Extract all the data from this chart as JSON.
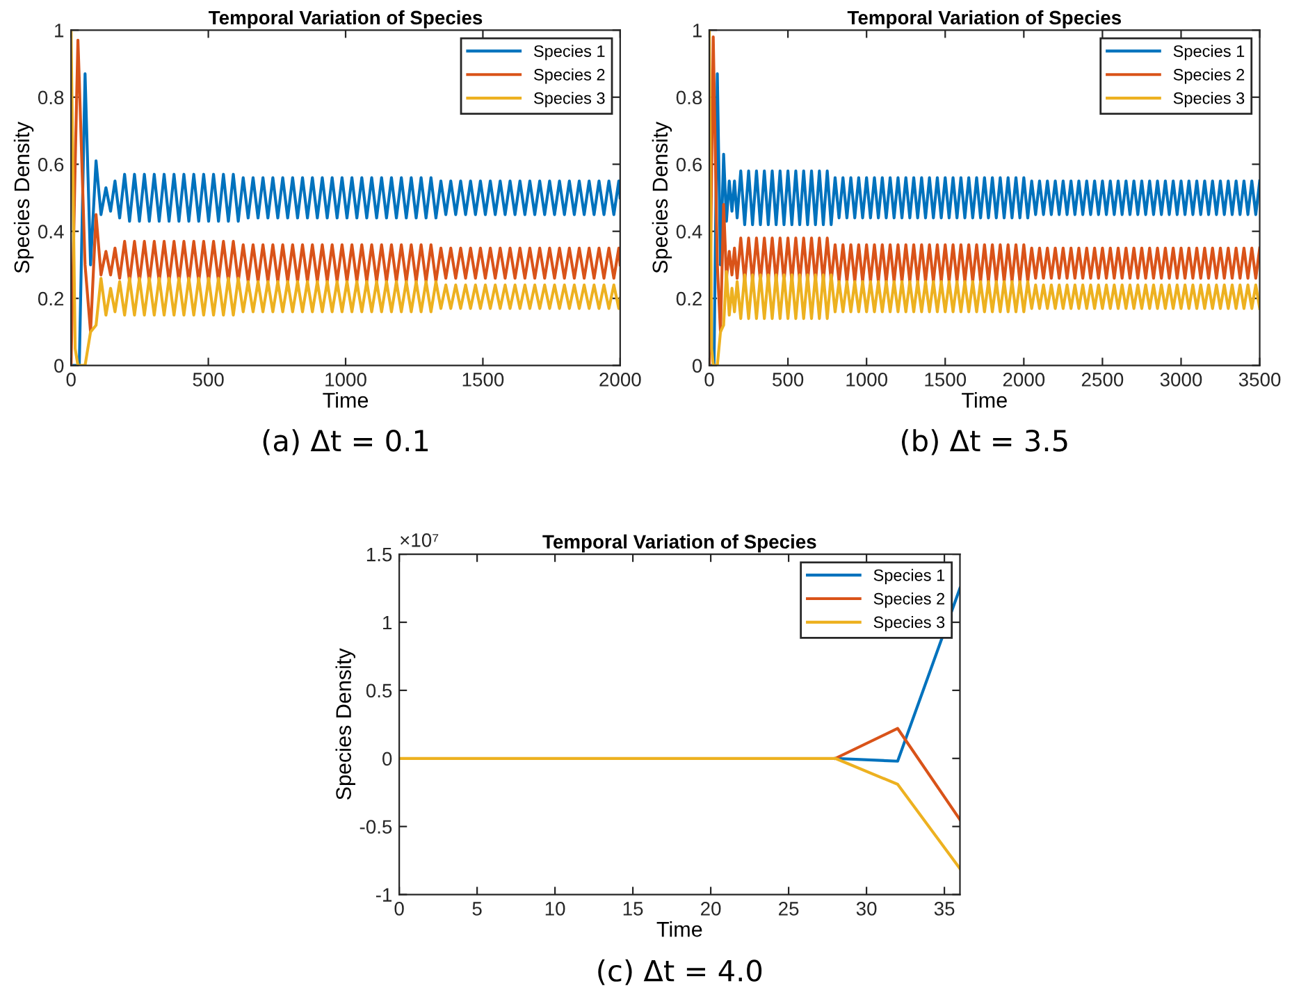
{
  "chart_data": [
    {
      "type": "line",
      "title": "Temporal Variation of Species",
      "xlabel": "Time",
      "ylabel": "Species Density",
      "annotations": [
        "(a) Δt = 0.1"
      ],
      "legend": "top right",
      "grid": false,
      "xlim": [
        0,
        2000
      ],
      "xticks": [
        0,
        500,
        1000,
        1500,
        2000
      ],
      "ylim": [
        0,
        1
      ],
      "yticks": [
        0,
        0.2,
        0.4,
        0.6,
        0.8,
        1
      ],
      "x": [
        0,
        15,
        25,
        30,
        51,
        71,
        91,
        109,
        127,
        144,
        160,
        177,
        195,
        213,
        231,
        249,
        267,
        285,
        303,
        321,
        339,
        357,
        375,
        393,
        411,
        429,
        447,
        465,
        483,
        501,
        519,
        537,
        555,
        573,
        591,
        609,
        627,
        645,
        663,
        681,
        699,
        717,
        735,
        753,
        771,
        789,
        807,
        825,
        843,
        861,
        879,
        897,
        915,
        933,
        951,
        969,
        987,
        1005,
        1023,
        1041,
        1059,
        1077,
        1095,
        1113,
        1131,
        1149,
        1167,
        1185,
        1203,
        1221,
        1239,
        1257,
        1275,
        1293,
        1311,
        1329,
        1347,
        1365,
        1383,
        1401,
        1419,
        1437,
        1455,
        1473,
        1491,
        1509,
        1527,
        1545,
        1563,
        1581,
        1599,
        1617,
        1635,
        1653,
        1671,
        1689,
        1707,
        1725,
        1743,
        1761,
        1779,
        1797,
        1815,
        1833,
        1851,
        1869,
        1887,
        1905,
        1923,
        1941,
        1959,
        1977,
        1995,
        2000
      ],
      "series": [
        {
          "name": "Species 1",
          "color": "#0072bd",
          "values": [
            0,
            0,
            0,
            0,
            0.87,
            0.3,
            0.61,
            0.45,
            0.53,
            0.46,
            0.55,
            0.44,
            0.57,
            0.43,
            0.57,
            0.43,
            0.57,
            0.43,
            0.57,
            0.43,
            0.57,
            0.43,
            0.57,
            0.43,
            0.57,
            0.43,
            0.57,
            0.43,
            0.57,
            0.43,
            0.57,
            0.43,
            0.57,
            0.43,
            0.57,
            0.43,
            0.56,
            0.44,
            0.56,
            0.44,
            0.56,
            0.44,
            0.56,
            0.44,
            0.56,
            0.44,
            0.56,
            0.44,
            0.56,
            0.44,
            0.56,
            0.44,
            0.56,
            0.44,
            0.56,
            0.44,
            0.56,
            0.44,
            0.56,
            0.44,
            0.56,
            0.44,
            0.56,
            0.44,
            0.56,
            0.44,
            0.56,
            0.44,
            0.56,
            0.44,
            0.56,
            0.44,
            0.56,
            0.44,
            0.56,
            0.44,
            0.55,
            0.45,
            0.55,
            0.45,
            0.55,
            0.45,
            0.55,
            0.45,
            0.55,
            0.45,
            0.55,
            0.45,
            0.55,
            0.45,
            0.55,
            0.45,
            0.55,
            0.45,
            0.55,
            0.45,
            0.55,
            0.45,
            0.55,
            0.45,
            0.55,
            0.45,
            0.55,
            0.45,
            0.55,
            0.45,
            0.55,
            0.45,
            0.55,
            0.45,
            0.55,
            0.45,
            0.55,
            0.5
          ]
        },
        {
          "name": "Species 2",
          "color": "#d95319",
          "values": [
            0,
            0.6,
            0.97,
            0.85,
            0.3,
            0.1,
            0.45,
            0.27,
            0.34,
            0.27,
            0.35,
            0.26,
            0.37,
            0.25,
            0.37,
            0.25,
            0.37,
            0.25,
            0.37,
            0.25,
            0.37,
            0.25,
            0.37,
            0.25,
            0.37,
            0.25,
            0.37,
            0.25,
            0.37,
            0.25,
            0.37,
            0.25,
            0.37,
            0.25,
            0.37,
            0.25,
            0.36,
            0.25,
            0.36,
            0.25,
            0.36,
            0.25,
            0.36,
            0.25,
            0.36,
            0.25,
            0.36,
            0.25,
            0.36,
            0.25,
            0.36,
            0.25,
            0.36,
            0.25,
            0.36,
            0.25,
            0.36,
            0.25,
            0.36,
            0.25,
            0.36,
            0.25,
            0.36,
            0.25,
            0.36,
            0.25,
            0.36,
            0.25,
            0.36,
            0.25,
            0.36,
            0.25,
            0.36,
            0.25,
            0.36,
            0.25,
            0.35,
            0.26,
            0.35,
            0.26,
            0.35,
            0.26,
            0.35,
            0.26,
            0.35,
            0.26,
            0.35,
            0.26,
            0.35,
            0.26,
            0.35,
            0.26,
            0.35,
            0.26,
            0.35,
            0.26,
            0.35,
            0.26,
            0.35,
            0.26,
            0.35,
            0.26,
            0.35,
            0.26,
            0.35,
            0.26,
            0.35,
            0.26,
            0.35,
            0.26,
            0.35,
            0.26,
            0.35,
            0.3
          ]
        },
        {
          "name": "Species 3",
          "color": "#edb120",
          "values": [
            1,
            0.05,
            0,
            0,
            0,
            0.1,
            0.12,
            0.26,
            0.15,
            0.23,
            0.16,
            0.25,
            0.15,
            0.26,
            0.15,
            0.26,
            0.15,
            0.26,
            0.15,
            0.26,
            0.15,
            0.26,
            0.15,
            0.26,
            0.15,
            0.26,
            0.15,
            0.26,
            0.15,
            0.26,
            0.15,
            0.26,
            0.15,
            0.26,
            0.15,
            0.26,
            0.16,
            0.25,
            0.16,
            0.25,
            0.16,
            0.25,
            0.16,
            0.25,
            0.16,
            0.25,
            0.16,
            0.25,
            0.16,
            0.25,
            0.16,
            0.25,
            0.16,
            0.25,
            0.16,
            0.25,
            0.16,
            0.25,
            0.16,
            0.25,
            0.16,
            0.25,
            0.16,
            0.25,
            0.16,
            0.25,
            0.16,
            0.25,
            0.16,
            0.25,
            0.16,
            0.25,
            0.16,
            0.25,
            0.16,
            0.25,
            0.17,
            0.24,
            0.17,
            0.24,
            0.17,
            0.24,
            0.17,
            0.24,
            0.17,
            0.24,
            0.17,
            0.24,
            0.17,
            0.24,
            0.17,
            0.24,
            0.17,
            0.24,
            0.17,
            0.24,
            0.17,
            0.24,
            0.17,
            0.24,
            0.17,
            0.24,
            0.17,
            0.24,
            0.17,
            0.24,
            0.17,
            0.24,
            0.17,
            0.24,
            0.17,
            0.24,
            0.17,
            0.2
          ]
        }
      ]
    },
    {
      "type": "line",
      "title": "Temporal Variation of Species",
      "xlabel": "Time",
      "ylabel": "Species Density",
      "annotations": [
        "(b) Δt = 3.5"
      ],
      "legend": "top right",
      "grid": false,
      "xlim": [
        0,
        3500
      ],
      "xticks": [
        0,
        500,
        1000,
        1500,
        2000,
        2500,
        3000,
        3500
      ],
      "ylim": [
        0,
        1
      ],
      "yticks": [
        0,
        0.2,
        0.4,
        0.6,
        0.8,
        1
      ],
      "x": [
        0,
        15,
        25,
        30,
        51,
        71,
        91,
        109,
        127,
        144,
        160,
        177,
        200,
        225,
        250,
        275,
        300,
        325,
        350,
        375,
        400,
        425,
        450,
        475,
        500,
        525,
        550,
        575,
        600,
        625,
        650,
        675,
        700,
        725,
        750,
        775,
        800,
        825,
        850,
        875,
        900,
        925,
        950,
        975,
        1000,
        1025,
        1050,
        1075,
        1100,
        1125,
        1150,
        1175,
        1200,
        1225,
        1250,
        1275,
        1300,
        1325,
        1350,
        1375,
        1400,
        1425,
        1450,
        1475,
        1500,
        1525,
        1550,
        1575,
        1600,
        1625,
        1650,
        1675,
        1700,
        1725,
        1750,
        1775,
        1800,
        1825,
        1850,
        1875,
        1900,
        1925,
        1950,
        1975,
        2000,
        2025,
        2050,
        2075,
        2100,
        2125,
        2150,
        2175,
        2200,
        2225,
        2250,
        2275,
        2300,
        2325,
        2350,
        2375,
        2400,
        2425,
        2450,
        2475,
        2500,
        2525,
        2550,
        2575,
        2600,
        2625,
        2650,
        2675,
        2700,
        2725,
        2750,
        2775,
        2800,
        2825,
        2850,
        2875,
        2900,
        2925,
        2950,
        2975,
        3000,
        3025,
        3050,
        3075,
        3100,
        3125,
        3150,
        3175,
        3200,
        3225,
        3250,
        3275,
        3300,
        3325,
        3350,
        3375,
        3400,
        3425,
        3450,
        3475,
        3500
      ],
      "series": [
        {
          "name": "Species 1",
          "color": "#0072bd",
          "values": [
            0,
            0,
            0,
            0,
            0.87,
            0.3,
            0.63,
            0.43,
            0.55,
            0.46,
            0.55,
            0.44,
            0.58,
            0.42,
            0.58,
            0.42,
            0.58,
            0.42,
            0.58,
            0.42,
            0.58,
            0.42,
            0.58,
            0.42,
            0.58,
            0.42,
            0.58,
            0.42,
            0.58,
            0.42,
            0.58,
            0.42,
            0.58,
            0.42,
            0.58,
            0.42,
            0.56,
            0.44,
            0.56,
            0.44,
            0.56,
            0.44,
            0.56,
            0.44,
            0.56,
            0.44,
            0.56,
            0.44,
            0.56,
            0.44,
            0.56,
            0.44,
            0.56,
            0.44,
            0.56,
            0.44,
            0.56,
            0.44,
            0.56,
            0.44,
            0.56,
            0.44,
            0.56,
            0.44,
            0.56,
            0.44,
            0.56,
            0.44,
            0.56,
            0.44,
            0.56,
            0.44,
            0.56,
            0.44,
            0.56,
            0.44,
            0.56,
            0.44,
            0.56,
            0.44,
            0.56,
            0.44,
            0.56,
            0.44,
            0.56,
            0.44,
            0.55,
            0.45,
            0.55,
            0.45,
            0.55,
            0.45,
            0.55,
            0.45,
            0.55,
            0.45,
            0.55,
            0.45,
            0.55,
            0.45,
            0.55,
            0.45,
            0.55,
            0.45,
            0.55,
            0.45,
            0.55,
            0.45,
            0.55,
            0.45,
            0.55,
            0.45,
            0.55,
            0.45,
            0.55,
            0.45,
            0.55,
            0.45,
            0.55,
            0.45,
            0.55,
            0.45,
            0.55,
            0.45,
            0.55,
            0.45,
            0.55,
            0.45,
            0.55,
            0.45,
            0.55,
            0.45,
            0.55,
            0.45,
            0.55,
            0.45,
            0.55,
            0.45,
            0.55,
            0.45,
            0.55,
            0.45,
            0.55,
            0.45,
            0.55
          ]
        },
        {
          "name": "Species 2",
          "color": "#d95319",
          "values": [
            0,
            0.6,
            0.98,
            0.85,
            0.3,
            0.1,
            0.48,
            0.26,
            0.34,
            0.27,
            0.35,
            0.26,
            0.38,
            0.25,
            0.38,
            0.25,
            0.38,
            0.25,
            0.38,
            0.25,
            0.38,
            0.25,
            0.38,
            0.25,
            0.38,
            0.25,
            0.38,
            0.25,
            0.38,
            0.25,
            0.38,
            0.25,
            0.38,
            0.25,
            0.38,
            0.25,
            0.36,
            0.25,
            0.36,
            0.25,
            0.36,
            0.25,
            0.36,
            0.25,
            0.36,
            0.25,
            0.36,
            0.25,
            0.36,
            0.25,
            0.36,
            0.25,
            0.36,
            0.25,
            0.36,
            0.25,
            0.36,
            0.25,
            0.36,
            0.25,
            0.36,
            0.25,
            0.36,
            0.25,
            0.36,
            0.25,
            0.36,
            0.25,
            0.36,
            0.25,
            0.36,
            0.25,
            0.36,
            0.25,
            0.36,
            0.25,
            0.36,
            0.25,
            0.36,
            0.25,
            0.36,
            0.25,
            0.36,
            0.25,
            0.36,
            0.25,
            0.35,
            0.26,
            0.35,
            0.26,
            0.35,
            0.26,
            0.35,
            0.26,
            0.35,
            0.26,
            0.35,
            0.26,
            0.35,
            0.26,
            0.35,
            0.26,
            0.35,
            0.26,
            0.35,
            0.26,
            0.35,
            0.26,
            0.35,
            0.26,
            0.35,
            0.26,
            0.35,
            0.26,
            0.35,
            0.26,
            0.35,
            0.26,
            0.35,
            0.26,
            0.35,
            0.26,
            0.35,
            0.26,
            0.35,
            0.26,
            0.35,
            0.26,
            0.35,
            0.26,
            0.35,
            0.26,
            0.35,
            0.26,
            0.35,
            0.26,
            0.35,
            0.26,
            0.35,
            0.26,
            0.35,
            0.26,
            0.35,
            0.26,
            0.35
          ]
        },
        {
          "name": "Species 3",
          "color": "#edb120",
          "values": [
            1,
            0.05,
            0,
            0,
            0,
            0.1,
            0.12,
            0.28,
            0.15,
            0.23,
            0.16,
            0.25,
            0.14,
            0.27,
            0.14,
            0.27,
            0.14,
            0.27,
            0.14,
            0.27,
            0.14,
            0.27,
            0.14,
            0.27,
            0.14,
            0.27,
            0.14,
            0.27,
            0.14,
            0.27,
            0.14,
            0.27,
            0.14,
            0.27,
            0.14,
            0.27,
            0.16,
            0.25,
            0.16,
            0.25,
            0.16,
            0.25,
            0.16,
            0.25,
            0.16,
            0.25,
            0.16,
            0.25,
            0.16,
            0.25,
            0.16,
            0.25,
            0.16,
            0.25,
            0.16,
            0.25,
            0.16,
            0.25,
            0.16,
            0.25,
            0.16,
            0.25,
            0.16,
            0.25,
            0.16,
            0.25,
            0.16,
            0.25,
            0.16,
            0.25,
            0.16,
            0.25,
            0.16,
            0.25,
            0.16,
            0.25,
            0.16,
            0.25,
            0.16,
            0.25,
            0.16,
            0.25,
            0.16,
            0.25,
            0.16,
            0.25,
            0.17,
            0.24,
            0.17,
            0.24,
            0.17,
            0.24,
            0.17,
            0.24,
            0.17,
            0.24,
            0.17,
            0.24,
            0.17,
            0.24,
            0.17,
            0.24,
            0.17,
            0.24,
            0.17,
            0.24,
            0.17,
            0.24,
            0.17,
            0.24,
            0.17,
            0.24,
            0.17,
            0.24,
            0.17,
            0.24,
            0.17,
            0.24,
            0.17,
            0.24,
            0.17,
            0.24,
            0.17,
            0.24,
            0.17,
            0.24,
            0.17,
            0.24,
            0.17,
            0.24,
            0.17,
            0.24,
            0.17,
            0.24,
            0.17,
            0.24,
            0.17,
            0.24,
            0.17,
            0.24,
            0.17,
            0.24,
            0.17,
            0.24,
            0.17
          ]
        }
      ]
    },
    {
      "type": "line",
      "title": "Temporal Variation of Species",
      "xlabel": "Time",
      "ylabel": "Species Density",
      "annotations": [
        "(c) Δt = 4.0",
        "×10⁷"
      ],
      "legend": "top right",
      "grid": false,
      "xlim": [
        0,
        36
      ],
      "xticks": [
        0,
        5,
        10,
        15,
        20,
        25,
        30,
        35
      ],
      "ylim": [
        -1,
        1.5
      ],
      "yticks": [
        -1,
        -0.5,
        0,
        0.5,
        1,
        1.5
      ],
      "x": [
        0,
        4,
        8,
        12,
        16,
        20,
        24,
        28,
        32,
        36
      ],
      "series": [
        {
          "name": "Species 1",
          "color": "#0072bd",
          "values": [
            null,
            null,
            null,
            null,
            null,
            null,
            null,
            0,
            -0.02,
            1.25
          ]
        },
        {
          "name": "Species 2",
          "color": "#d95319",
          "values": [
            null,
            null,
            null,
            null,
            null,
            null,
            null,
            0,
            0.22,
            -0.45
          ]
        },
        {
          "name": "Species 3",
          "color": "#edb120",
          "values": [
            0,
            0,
            0,
            0,
            0,
            0,
            0,
            0,
            -0.19,
            -0.81
          ]
        }
      ]
    }
  ]
}
